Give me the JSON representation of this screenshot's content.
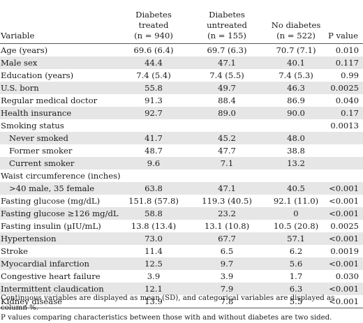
{
  "header": {
    "variable": "Variable",
    "col1_name": "Diabetes treated",
    "col1_n": "(n = 940)",
    "col2_name": "Diabetes untreated",
    "col2_n": "(n = 155)",
    "col3_name": "No diabetes",
    "col3_n": "(n = 522)",
    "pvalue": "P value"
  },
  "rows": [
    {
      "label": "Age (years)",
      "v1": "69.6 (6.4)",
      "v2": "69.7 (6.3)",
      "v3": "70.7 (7.1)",
      "p": "0.010"
    },
    {
      "label": "Male sex",
      "v1": "44.4",
      "v2": "47.1",
      "v3": "40.1",
      "p": "0.117"
    },
    {
      "label": "Education (years)",
      "v1": "7.4 (5.4)",
      "v2": "7.4 (5.5)",
      "v3": "7.4 (5.3)",
      "p": "0.99"
    },
    {
      "label": "U.S. born",
      "v1": "55.8",
      "v2": "49.7",
      "v3": "46.3",
      "p": "0.0025"
    },
    {
      "label": "Regular medical doctor",
      "v1": "91.3",
      "v2": "88.4",
      "v3": "86.9",
      "p": "0.040"
    },
    {
      "label": "Health insurance",
      "v1": "92.7",
      "v2": "89.0",
      "v3": "90.0",
      "p": "0.17"
    },
    {
      "label": "Smoking status",
      "v1": "",
      "v2": "",
      "v3": "",
      "p": "0.0013"
    },
    {
      "label": "Never smoked",
      "v1": "41.7",
      "v2": "45.2",
      "v3": "48.0",
      "p": ""
    },
    {
      "label": "Former smoker",
      "v1": "48.7",
      "v2": "47.7",
      "v3": "38.8",
      "p": ""
    },
    {
      "label": "Current smoker",
      "v1": "9.6",
      "v2": "7.1",
      "v3": "13.2",
      "p": ""
    },
    {
      "label": "Waist circumference (inches)",
      "v1": "",
      "v2": "",
      "v3": "",
      "p": ""
    },
    {
      "label": ">40 male, 35 female",
      "v1": "63.8",
      "v2": "47.1",
      "v3": "40.5",
      "p": "<0.001"
    },
    {
      "label": "Fasting glucose (mg/dL)",
      "v1": "151.8 (57.8)",
      "v2": "119.3 (40.5)",
      "v3": "92.1 (11.0)",
      "p": "<0.001"
    },
    {
      "label": "Fasting glucose ≥126 mg/dL",
      "v1": "58.8",
      "v2": "23.2",
      "v3": "0",
      "p": "<0.001"
    },
    {
      "label": "Fasting insulin (µIU/mL)",
      "v1": "13.8 (13.4)",
      "v2": "13.1 (10.8)",
      "v3": "10.5 (20.8)",
      "p": "0.0025"
    },
    {
      "label": "Hypertension",
      "v1": "73.0",
      "v2": "67.7",
      "v3": "57.1",
      "p": "<0.001"
    },
    {
      "label": "Stroke",
      "v1": "11.4",
      "v2": "6.5",
      "v3": "6.2",
      "p": "0.0019"
    },
    {
      "label": "Myocardial infarction",
      "v1": "12.5",
      "v2": "9.7",
      "v3": "5.6",
      "p": "<0.001"
    },
    {
      "label": "Congestive heart failure",
      "v1": "3.9",
      "v2": "3.9",
      "v3": "1.7",
      "p": "0.030"
    },
    {
      "label": "Intermittent claudication",
      "v1": "12.1",
      "v2": "7.9",
      "v3": "6.3",
      "p": "<0.001"
    },
    {
      "label": "Kidney disease",
      "v1": "13.9",
      "v2": "7.8",
      "v3": "5.5",
      "p": "<0.001"
    }
  ],
  "footnote": {
    "line1": "Continuous variables are displayed as mean (SD), and categorical variables are displayed as column %.",
    "line2": "P values comparing characteristics between those with and without diabetes are two sided."
  }
}
